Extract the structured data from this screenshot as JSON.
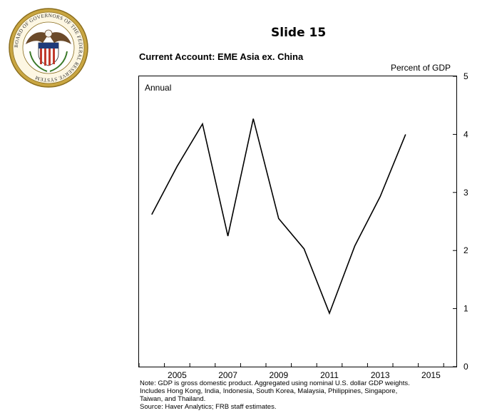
{
  "header": {
    "seal_text": "BOARD OF GOVERNORS OF THE FEDERAL RESERVE SYSTEM",
    "slide_title": "Slide 15"
  },
  "chart_data": {
    "type": "line",
    "title": "Current Account: EME Asia ex. China",
    "ylabel": "Percent of GDP",
    "frequency_label": "Annual",
    "x": [
      2004.5,
      2005.5,
      2006.5,
      2007.5,
      2008.5,
      2009.5,
      2010.5,
      2011.5,
      2012.5,
      2013.5,
      2014.5
    ],
    "values": [
      2.62,
      3.45,
      4.18,
      2.25,
      4.27,
      2.55,
      2.03,
      0.92,
      2.08,
      2.93,
      4.0
    ],
    "xlim": [
      2004,
      2016.5
    ],
    "ylim": [
      0,
      5
    ],
    "x_ticks": [
      "2005",
      "2007",
      "2009",
      "2011",
      "2013",
      "2015"
    ],
    "y_ticks": [
      "0",
      "1",
      "2",
      "3",
      "4",
      "5"
    ],
    "y_axis_side": "right",
    "grid": false,
    "line_color": "#000000"
  },
  "notes": {
    "line1": "Note: GDP is gross domestic product. Aggregated using nominal U.S. dollar GDP weights.",
    "line2": "Includes Hong Kong, India, Indonesia, South Korea, Malaysia, Philippines, Singapore,",
    "line3": "Taiwan, and Thailand.",
    "line4": "Source: Haver Analytics; FRB staff estimates."
  }
}
